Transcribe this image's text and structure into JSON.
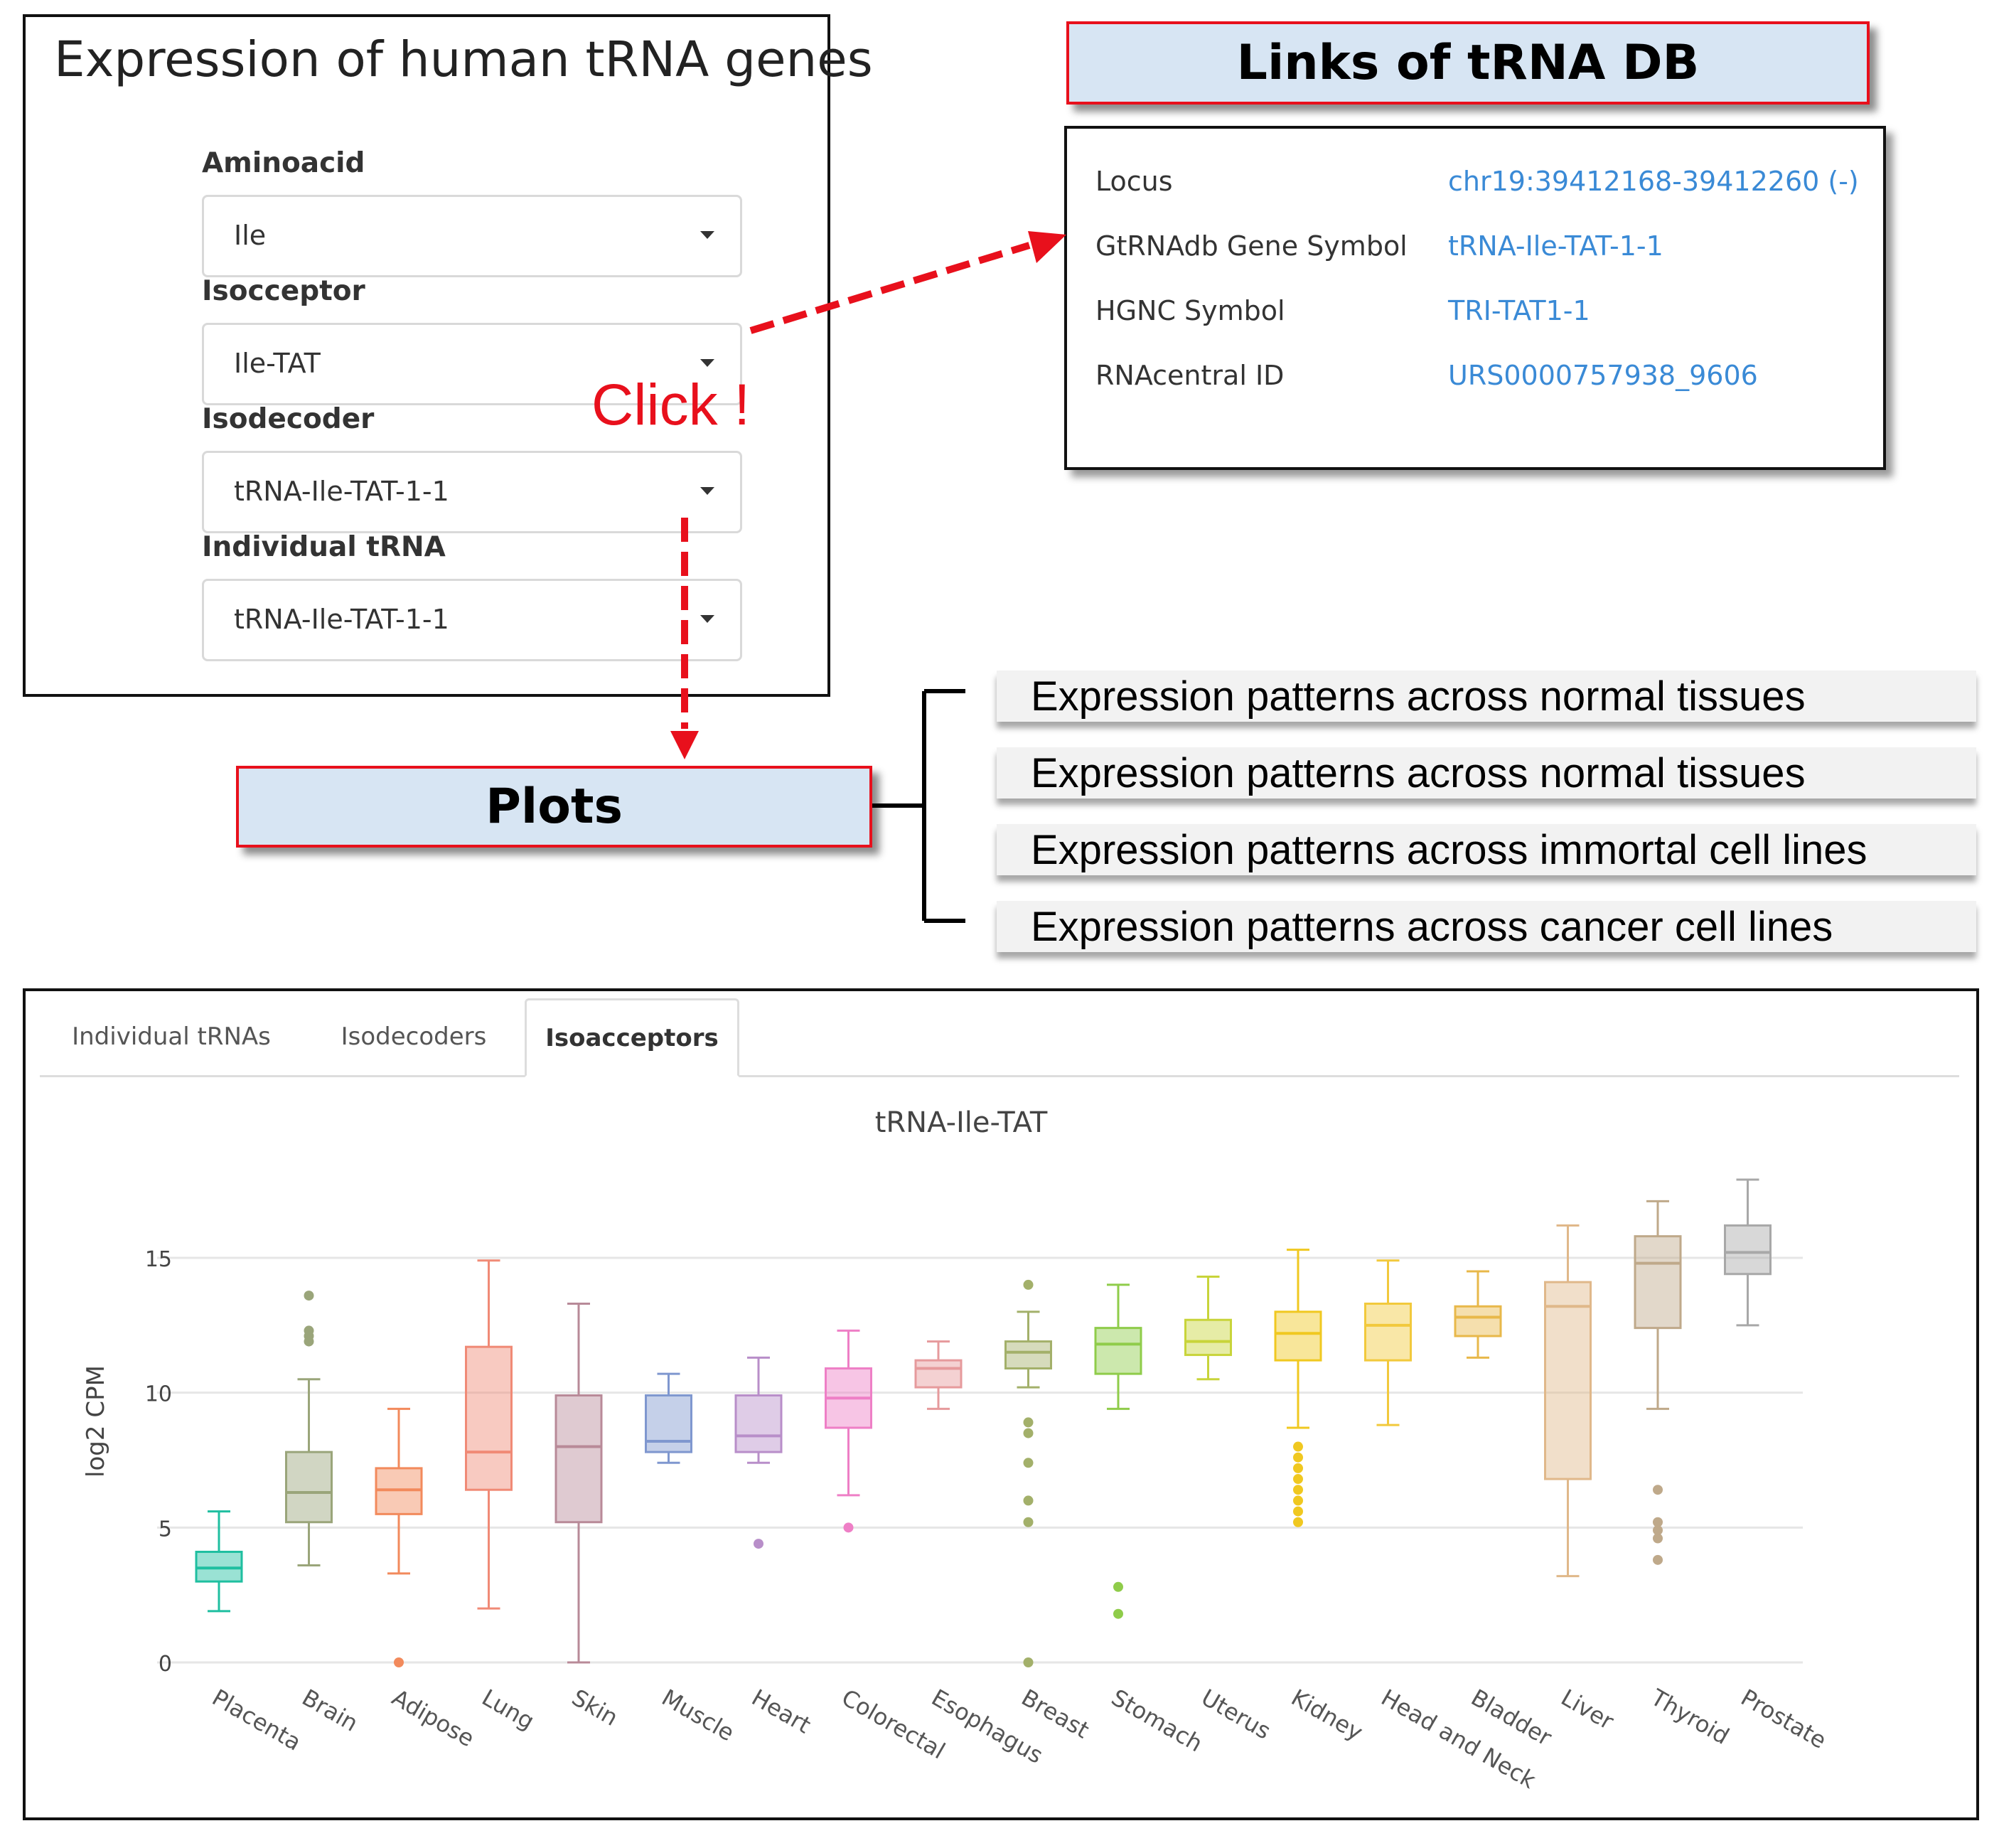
{
  "selector_panel": {
    "title": "Expression of human tRNA genes",
    "fields": [
      {
        "label": "Aminoacid",
        "value": "Ile"
      },
      {
        "label": "Isocceptor",
        "value": "Ile-TAT"
      },
      {
        "label": "Isodecoder",
        "value": "tRNA-Ile-TAT-1-1"
      },
      {
        "label": "Individual tRNA",
        "value": "tRNA-Ile-TAT-1-1"
      }
    ]
  },
  "annotations": {
    "click_text": "Click !",
    "db_header": "Links of tRNA DB",
    "plots_label": "Plots",
    "arrow_color": "#e8101c"
  },
  "links_panel": {
    "rows": [
      {
        "label": "Locus",
        "value": "chr19:39412168-39412260 (-)"
      },
      {
        "label": "GtRNAdb Gene Symbol",
        "value": "tRNA-Ile-TAT-1-1"
      },
      {
        "label": "HGNC Symbol",
        "value": "TRI-TAT1-1"
      },
      {
        "label": "RNAcentral ID",
        "value": "URS0000757938_9606"
      }
    ],
    "link_color": "#3a8ad6"
  },
  "expression_patterns": [
    "Expression patterns across normal tissues",
    "Expression patterns across normal tissues",
    "Expression patterns across immortal cell lines",
    "Expression patterns across cancer cell lines"
  ],
  "plot_panel": {
    "tabs": [
      {
        "label": "Individual tRNAs",
        "active": false
      },
      {
        "label": "Isodecoders",
        "active": false
      },
      {
        "label": "Isoacceptors",
        "active": true
      }
    ]
  },
  "chart_data": {
    "type": "box",
    "title": "tRNA-Ile-TAT",
    "xlabel": "",
    "ylabel": "log2 CPM",
    "ylim": [
      -0.5,
      19
    ],
    "yticks": [
      0,
      5,
      10,
      15
    ],
    "grid": true,
    "series": [
      {
        "name": "Placenta",
        "color": "#1fbfa0",
        "min": 1.9,
        "q1": 3.0,
        "median": 3.5,
        "q3": 4.1,
        "max": 5.6,
        "outliers": []
      },
      {
        "name": "Brain",
        "color": "#9aa57a",
        "min": 3.6,
        "q1": 5.2,
        "median": 6.3,
        "q3": 7.8,
        "max": 10.5,
        "outliers": [
          11.9,
          12.1,
          12.3,
          13.6
        ]
      },
      {
        "name": "Adipose",
        "color": "#f28a5c",
        "min": 3.3,
        "q1": 5.5,
        "median": 6.4,
        "q3": 7.2,
        "max": 9.4,
        "outliers": [
          0.0
        ]
      },
      {
        "name": "Lung",
        "color": "#f08a76",
        "min": 2.0,
        "q1": 6.4,
        "median": 7.8,
        "q3": 11.7,
        "max": 14.9,
        "outliers": []
      },
      {
        "name": "Skin",
        "color": "#b88a98",
        "min": 0.0,
        "q1": 5.2,
        "median": 8.0,
        "q3": 9.9,
        "max": 13.3,
        "outliers": []
      },
      {
        "name": "Muscle",
        "color": "#7f97cf",
        "min": 7.4,
        "q1": 7.8,
        "median": 8.2,
        "q3": 9.9,
        "max": 10.7,
        "outliers": []
      },
      {
        "name": "Heart",
        "color": "#b88ec9",
        "min": 7.4,
        "q1": 7.8,
        "median": 8.4,
        "q3": 9.9,
        "max": 11.3,
        "outliers": [
          4.4
        ]
      },
      {
        "name": "Colorectal",
        "color": "#ee7fc6",
        "min": 6.2,
        "q1": 8.7,
        "median": 9.8,
        "q3": 10.9,
        "max": 12.3,
        "outliers": [
          5.0
        ]
      },
      {
        "name": "Esophagus",
        "color": "#e69a9c",
        "min": 9.4,
        "q1": 10.2,
        "median": 10.9,
        "q3": 11.2,
        "max": 11.9,
        "outliers": []
      },
      {
        "name": "Breast",
        "color": "#a3b06a",
        "min": 10.2,
        "q1": 10.9,
        "median": 11.5,
        "q3": 11.9,
        "max": 13.0,
        "outliers": [
          0.0,
          5.2,
          6.0,
          7.4,
          8.5,
          8.9,
          14.0
        ]
      },
      {
        "name": "Stomach",
        "color": "#8fcc4a",
        "min": 9.4,
        "q1": 10.7,
        "median": 11.8,
        "q3": 12.4,
        "max": 14.0,
        "outliers": [
          1.8,
          2.8
        ]
      },
      {
        "name": "Uterus",
        "color": "#c8d43a",
        "min": 10.5,
        "q1": 11.4,
        "median": 11.9,
        "q3": 12.7,
        "max": 14.3,
        "outliers": []
      },
      {
        "name": "Kidney",
        "color": "#f0c820",
        "min": 8.7,
        "q1": 11.2,
        "median": 12.2,
        "q3": 13.0,
        "max": 15.3,
        "outliers": [
          5.2,
          5.6,
          6.0,
          6.4,
          6.8,
          7.2,
          7.6,
          8.0
        ]
      },
      {
        "name": "Head and Neck",
        "color": "#f2c93c",
        "min": 8.8,
        "q1": 11.2,
        "median": 12.5,
        "q3": 13.3,
        "max": 14.9,
        "outliers": []
      },
      {
        "name": "Bladder",
        "color": "#e8b84a",
        "min": 11.3,
        "q1": 12.1,
        "median": 12.8,
        "q3": 13.2,
        "max": 14.5,
        "outliers": []
      },
      {
        "name": "Liver",
        "color": "#e0b88a",
        "min": 3.2,
        "q1": 6.8,
        "median": 13.2,
        "q3": 14.1,
        "max": 16.2,
        "outliers": []
      },
      {
        "name": "Thyroid",
        "color": "#bfa98a",
        "min": 9.4,
        "q1": 12.4,
        "median": 14.8,
        "q3": 15.8,
        "max": 17.1,
        "outliers": [
          3.8,
          4.6,
          4.9,
          5.2,
          6.4
        ]
      },
      {
        "name": "Prostate",
        "color": "#a8a8a8",
        "min": 12.5,
        "q1": 14.4,
        "median": 15.2,
        "q3": 16.2,
        "max": 17.9,
        "outliers": []
      }
    ]
  }
}
